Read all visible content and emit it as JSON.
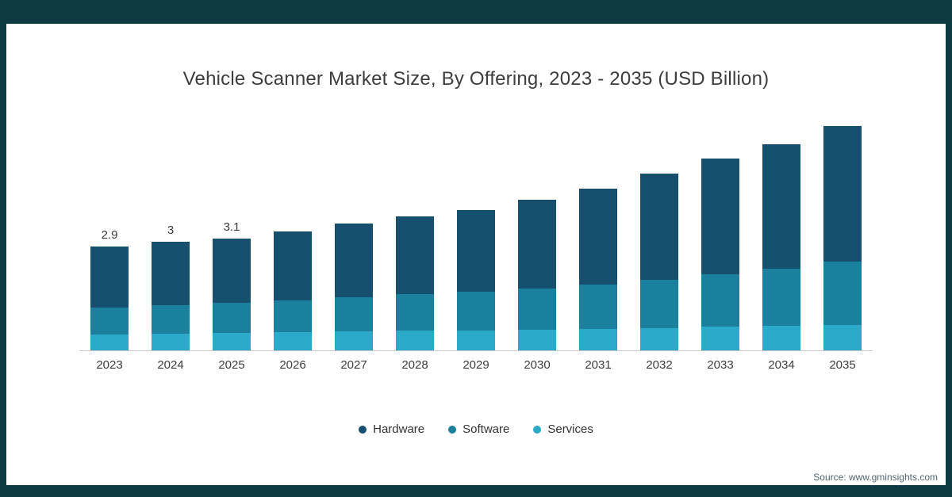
{
  "frame": {
    "color": "#0d3b41"
  },
  "source": "Source: www.gminsights.com",
  "chart_data": {
    "type": "bar",
    "stacked": true,
    "title": "Vehicle Scanner Market Size, By Offering, 2023 - 2035 (USD Billion)",
    "categories": [
      "2023",
      "2024",
      "2025",
      "2026",
      "2027",
      "2028",
      "2029",
      "2030",
      "2031",
      "2032",
      "2033",
      "2034",
      "2035"
    ],
    "bar_labels": [
      "2.9",
      "3",
      "3.1",
      "",
      "",
      "",
      "",
      "",
      "",
      "",
      "",
      "",
      ""
    ],
    "series": [
      {
        "name": "Hardware",
        "color": "#17506F",
        "values": [
          1.7,
          1.75,
          1.79,
          1.92,
          2.04,
          2.16,
          2.27,
          2.47,
          2.66,
          2.94,
          3.2,
          3.44,
          3.75
        ]
      },
      {
        "name": "Software",
        "color": "#1B7F9E",
        "values": [
          0.75,
          0.79,
          0.83,
          0.88,
          0.94,
          1.0,
          1.07,
          1.15,
          1.24,
          1.34,
          1.45,
          1.58,
          1.75
        ]
      },
      {
        "name": "Services",
        "color": "#2AA9C9",
        "values": [
          0.45,
          0.46,
          0.48,
          0.5,
          0.52,
          0.54,
          0.56,
          0.58,
          0.6,
          0.62,
          0.65,
          0.68,
          0.7
        ]
      }
    ],
    "totals": [
      2.9,
      3.0,
      3.1,
      3.3,
      3.5,
      3.7,
      3.9,
      4.2,
      4.5,
      4.9,
      5.3,
      5.7,
      6.2
    ],
    "ylim": [
      0,
      6.5
    ],
    "legend_position": "bottom",
    "grid": false,
    "axes_shown": "x-only"
  }
}
